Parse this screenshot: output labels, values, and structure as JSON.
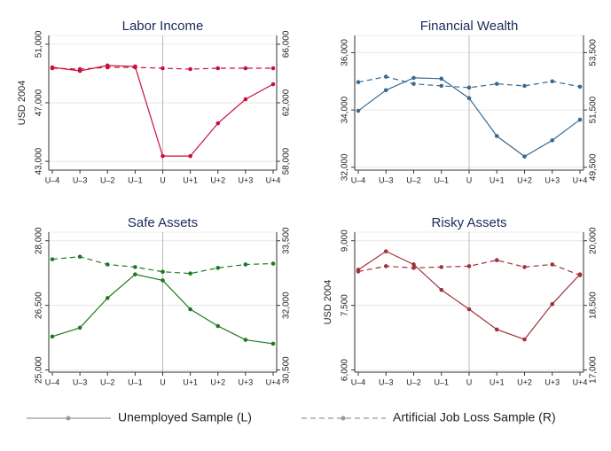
{
  "chart_data": [
    {
      "type": "line",
      "title": "Labor Income",
      "y_label": "USD 2004",
      "categories": [
        "U–4",
        "U–3",
        "U–2",
        "U–1",
        "U",
        "U+1",
        "U+2",
        "U+3",
        "U+4"
      ],
      "ylim": [
        42400,
        51600
      ],
      "yticks": [
        {
          "value": 43000,
          "label": "43,000"
        },
        {
          "value": 47000,
          "label": "47,000"
        },
        {
          "value": 51000,
          "label": "51,000"
        }
      ],
      "y2lim": [
        57400,
        66600
      ],
      "y2ticks": [
        {
          "value": 58000,
          "label": "58,000"
        },
        {
          "value": 62000,
          "label": "62,000"
        },
        {
          "value": 66000,
          "label": "66,000"
        }
      ],
      "grid": true,
      "series": [
        {
          "color": "#c8103c",
          "dash": "solid",
          "values": [
            49420,
            49180,
            49550,
            49480,
            43360,
            43360,
            45600,
            47240,
            48270
          ]
        },
        {
          "color": "#c8103c",
          "dash": "dashed",
          "axis": "y2",
          "values": [
            64360,
            64300,
            64420,
            64420,
            64360,
            64300,
            64360,
            64360,
            64360
          ]
        }
      ]
    },
    {
      "type": "line",
      "title": "Financial Wealth",
      "categories": [
        "U–4",
        "U–3",
        "U–2",
        "U–1",
        "U",
        "U+1",
        "U+2",
        "U+3",
        "U+4"
      ],
      "ylim": [
        31900,
        36600
      ],
      "yticks": [
        {
          "value": 32000,
          "label": "32,000"
        },
        {
          "value": 34000,
          "label": "34,000"
        },
        {
          "value": 36000,
          "label": "36,000"
        }
      ],
      "y2lim": [
        49400,
        54100
      ],
      "y2ticks": [
        {
          "value": 49500,
          "label": "49,500"
        },
        {
          "value": 51500,
          "label": "51,500"
        },
        {
          "value": 53500,
          "label": "53,500"
        }
      ],
      "grid": true,
      "series": [
        {
          "color": "#3a6a8f",
          "dash": "solid",
          "values": [
            33970,
            34690,
            35120,
            35090,
            34410,
            33090,
            32375,
            32940,
            33660
          ]
        },
        {
          "color": "#3a6a8f",
          "dash": "dashed",
          "axis": "y2",
          "values": [
            52470,
            52660,
            52410,
            52340,
            52280,
            52410,
            52340,
            52500,
            52310
          ]
        }
      ]
    },
    {
      "type": "line",
      "title": "Safe Assets",
      "categories": [
        "U–4",
        "U–3",
        "U–2",
        "U–1",
        "U",
        "U+1",
        "U+2",
        "U+3",
        "U+4"
      ],
      "ylim": [
        24950,
        28200
      ],
      "yticks": [
        {
          "value": 25000,
          "label": "25,000"
        },
        {
          "value": 26500,
          "label": "26,500"
        },
        {
          "value": 28000,
          "label": "28,000"
        }
      ],
      "y2lim": [
        30450,
        33700
      ],
      "y2ticks": [
        {
          "value": 30500,
          "label": "30,500"
        },
        {
          "value": 32000,
          "label": "32,000"
        },
        {
          "value": 33500,
          "label": "33,500"
        }
      ],
      "grid": true,
      "series": [
        {
          "color": "#1e7a1e",
          "dash": "solid",
          "values": [
            25776,
            25980,
            26670,
            27220,
            27080,
            26410,
            26020,
            25700,
            25610
          ]
        },
        {
          "color": "#1e7a1e",
          "dash": "dashed",
          "axis": "y2",
          "values": [
            33070,
            33130,
            32950,
            32890,
            32780,
            32740,
            32870,
            32950,
            32970
          ]
        }
      ]
    },
    {
      "type": "line",
      "title": "Risky Assets",
      "y_label": "USD 2004",
      "categories": [
        "U–4",
        "U–3",
        "U–2",
        "U–1",
        "U",
        "U+1",
        "U+2",
        "U+3",
        "U+4"
      ],
      "ylim": [
        5950,
        9200
      ],
      "yticks": [
        {
          "value": 6000,
          "label": "6,000"
        },
        {
          "value": 7500,
          "label": "7,500"
        },
        {
          "value": 9000,
          "label": "9,000"
        }
      ],
      "y2lim": [
        16950,
        20200
      ],
      "y2ticks": [
        {
          "value": 17000,
          "label": "17,000"
        },
        {
          "value": 18500,
          "label": "18,500"
        },
        {
          "value": 20000,
          "label": "20,000"
        }
      ],
      "grid": true,
      "series": [
        {
          "color": "#a0303a",
          "dash": "solid",
          "values": [
            8327,
            8755,
            8450,
            7860,
            7410,
            6940,
            6710,
            7530,
            8220
          ]
        },
        {
          "color": "#a0303a",
          "dash": "dashed",
          "axis": "y2",
          "values": [
            19286,
            19410,
            19370,
            19390,
            19410,
            19550,
            19390,
            19450,
            19200
          ]
        }
      ]
    }
  ],
  "legend": [
    {
      "name": "Unemployed Sample (L)",
      "color": "#999999",
      "dash": "solid"
    },
    {
      "name": "Artificial Job Loss Sample (R)",
      "color": "#999999",
      "dash": "dashed"
    }
  ]
}
